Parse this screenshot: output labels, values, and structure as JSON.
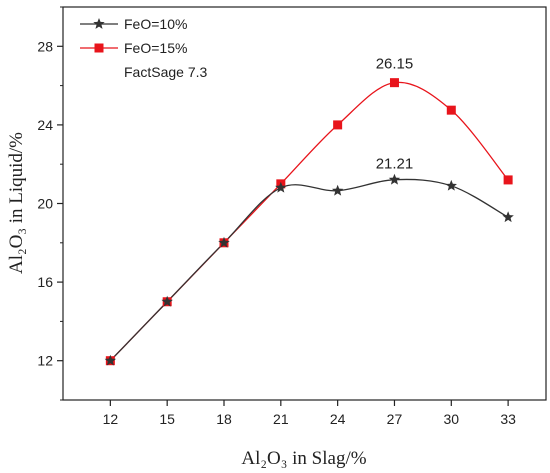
{
  "chart_data": {
    "type": "line",
    "title": "",
    "xlabel": "Al₂O₃ in Slag/%",
    "ylabel": "Al₂O₃ in Liquid/%",
    "x": [
      12,
      15,
      18,
      21,
      24,
      27,
      30,
      33
    ],
    "xlim": [
      9.5,
      35
    ],
    "ylim": [
      10,
      30
    ],
    "yticks": [
      12,
      16,
      20,
      24,
      28
    ],
    "series": [
      {
        "name": "FeO=10%",
        "color": "#333333",
        "marker": "star",
        "values": [
          12.0,
          15.0,
          18.0,
          20.8,
          20.65,
          21.21,
          20.9,
          19.3
        ]
      },
      {
        "name": "FeO=15%",
        "color": "#e8141b",
        "marker": "square",
        "values": [
          12.0,
          15.0,
          18.0,
          21.0,
          24.0,
          26.15,
          24.75,
          21.2
        ]
      }
    ],
    "annotations": [
      {
        "text": "26.15",
        "x": 27,
        "y": 26.15
      },
      {
        "text": "21.21",
        "x": 27,
        "y": 21.21
      }
    ],
    "legend": {
      "placement": "top-left",
      "entries": [
        "FeO=10%",
        "FeO=15%"
      ],
      "note": "FactSage 7.3"
    },
    "grid": false
  }
}
